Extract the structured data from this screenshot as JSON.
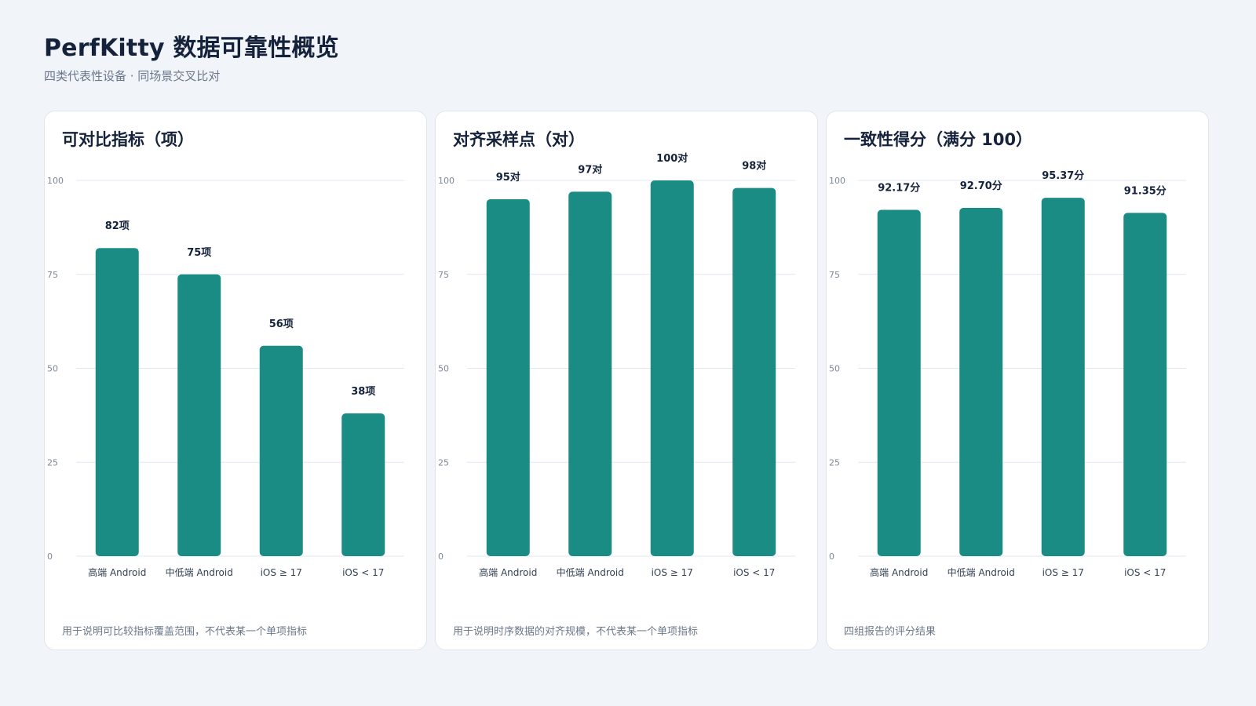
{
  "header": {
    "title": "PerfKitty 数据可靠性概览",
    "subtitle": "四类代表性设备 · 同场景交叉比对"
  },
  "colors": {
    "bar": "#1b8c84",
    "grid": "#e1e7f1",
    "background": "#f1f4f9"
  },
  "chart_data": [
    {
      "type": "bar",
      "title": "可对比指标（项）",
      "categories": [
        "高端 Android",
        "中低端 Android",
        "iOS ≥ 17",
        "iOS < 17"
      ],
      "values": [
        82,
        75,
        56,
        38
      ],
      "value_labels": [
        "82项",
        "75项",
        "56项",
        "38项"
      ],
      "yticks": [
        "0",
        "25",
        "50",
        "75",
        "100"
      ],
      "ylim": [
        0,
        100
      ],
      "grid": true,
      "note": "用于说明可比较指标覆盖范围，不代表某一个单项指标"
    },
    {
      "type": "bar",
      "title": "对齐采样点（对）",
      "categories": [
        "高端 Android",
        "中低端 Android",
        "iOS ≥ 17",
        "iOS < 17"
      ],
      "values": [
        95,
        97,
        100,
        98
      ],
      "value_labels": [
        "95对",
        "97对",
        "100对",
        "98对"
      ],
      "yticks": [
        "0",
        "25",
        "50",
        "75",
        "100"
      ],
      "ylim": [
        0,
        100
      ],
      "grid": true,
      "note": "用于说明时序数据的对齐规模，不代表某一个单项指标"
    },
    {
      "type": "bar",
      "title": "一致性得分（满分 100）",
      "categories": [
        "高端 Android",
        "中低端 Android",
        "iOS ≥ 17",
        "iOS < 17"
      ],
      "values": [
        92.17,
        92.7,
        95.37,
        91.35
      ],
      "value_labels": [
        "92.17分",
        "92.70分",
        "95.37分",
        "91.35分"
      ],
      "yticks": [
        "0",
        "25",
        "50",
        "75",
        "100"
      ],
      "ylim": [
        0,
        100
      ],
      "grid": true,
      "note": "四组报告的评分结果"
    }
  ]
}
